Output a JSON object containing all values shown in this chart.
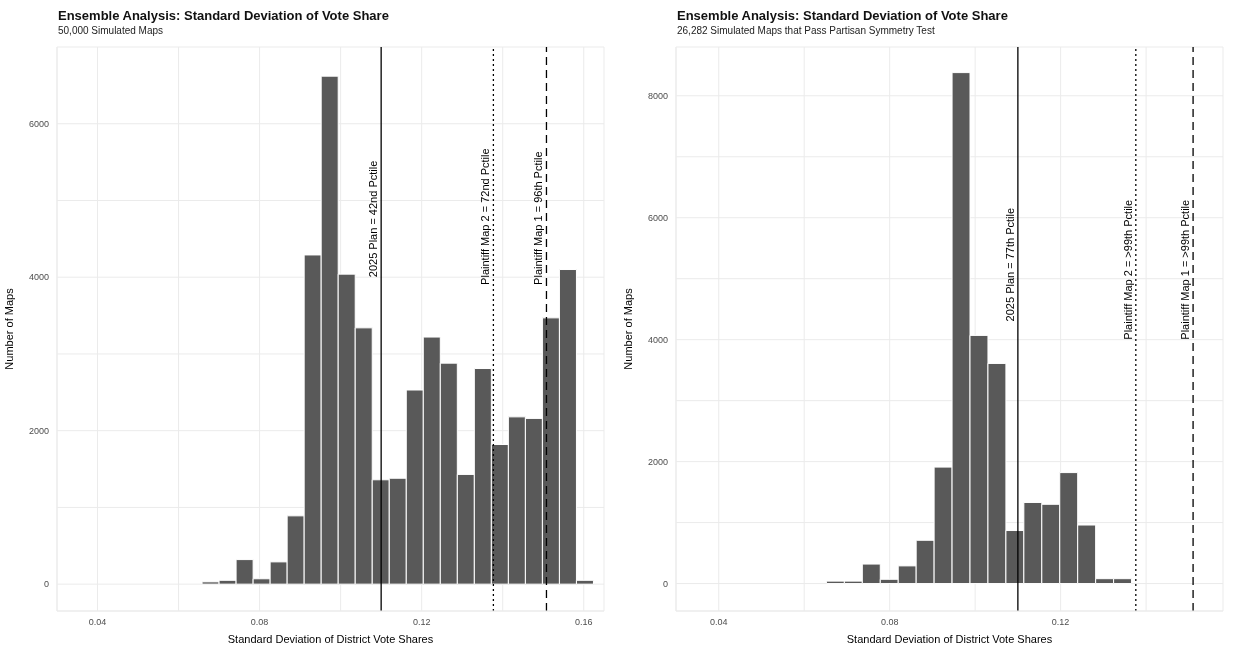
{
  "chart_data": [
    {
      "type": "histogram",
      "title": "Ensemble Analysis: Standard Deviation of Vote Share",
      "subtitle": "50,000 Simulated Maps",
      "xlabel": "Standard Deviation of District Vote Shares",
      "ylabel": "Number of Maps",
      "color": "#595959",
      "bins": [
        0.0658,
        0.07,
        0.0742,
        0.0784,
        0.0826,
        0.0868,
        0.091,
        0.0952,
        0.0994,
        0.1036,
        0.1078,
        0.112,
        0.1162,
        0.1204,
        0.1246,
        0.1288,
        0.133,
        0.1372,
        0.1414,
        0.1456,
        0.1498,
        0.154,
        0.1582,
        0.1624
      ],
      "values": [
        30,
        50,
        320,
        70,
        290,
        890,
        4290,
        6620,
        4040,
        3340,
        1360,
        1380,
        2530,
        3220,
        2880,
        1430,
        2810,
        1820,
        2180,
        2160,
        3470,
        4100,
        50
      ],
      "xlim": [
        0.03,
        0.165
      ],
      "xticks": [
        0.04,
        {
          "value": 0.06,
          "label": null
        },
        0.08,
        {
          "value": 0.1,
          "label": null
        },
        0.12,
        {
          "value": 0.14,
          "label": null
        },
        0.16
      ],
      "ylim": [
        -350,
        7000
      ],
      "yticks": [
        0,
        {
          "value": 1000,
          "label": null
        },
        2000,
        {
          "value": 3000,
          "label": null
        },
        4000,
        {
          "value": 5000,
          "label": null
        },
        6000,
        {
          "value": 7000,
          "label": null
        }
      ],
      "grid": true,
      "ref_lines": [
        {
          "axis": "x",
          "value": 0.11,
          "color": "#000000",
          "line_style": "solid"
        },
        {
          "axis": "x",
          "value": 0.1377,
          "color": "#000000",
          "line_style": "dotted"
        },
        {
          "axis": "x",
          "value": 0.1508,
          "color": "#000000",
          "line_style": "dashed"
        }
      ],
      "annotations": [
        {
          "text": "2025 Plan = 42nd Pctile",
          "x": 0.11,
          "y": 4000
        },
        {
          "text": "Plaintiff Map 2 = 72nd Pctile",
          "x": 0.1377,
          "y": 3900
        },
        {
          "text": "Plaintiff Map 1 = 96th Pctile",
          "x": 0.1508,
          "y": 3900
        }
      ]
    },
    {
      "type": "histogram",
      "title": "Ensemble Analysis: Standard Deviation of Vote Share",
      "subtitle": "26,282 Simulated Maps that Pass Partisan Symmetry Test",
      "xlabel": "Standard Deviation of District Vote Shares",
      "ylabel": "Number of Maps",
      "color": "#595959",
      "bins": [
        0.0652,
        0.0694,
        0.0736,
        0.0778,
        0.082,
        0.0862,
        0.0904,
        0.0946,
        0.0988,
        0.103,
        0.1072,
        0.1114,
        0.1156,
        0.1198,
        0.124,
        0.1282,
        0.1324,
        0.1366
      ],
      "values": [
        40,
        40,
        320,
        70,
        290,
        710,
        1910,
        8380,
        4070,
        3610,
        870,
        1330,
        1300,
        1820,
        960,
        80,
        80
      ],
      "xlim": [
        0.03,
        0.158
      ],
      "xticks": [
        0.04,
        {
          "value": 0.06,
          "label": null
        },
        0.08,
        {
          "value": 0.1,
          "label": null
        },
        0.12,
        {
          "value": 0.14,
          "label": null
        }
      ],
      "ylim": [
        -450,
        8800
      ],
      "yticks": [
        0,
        {
          "value": 1000,
          "label": null
        },
        2000,
        {
          "value": 3000,
          "label": null
        },
        4000,
        {
          "value": 5000,
          "label": null
        },
        6000,
        {
          "value": 7000,
          "label": null
        },
        8000
      ],
      "grid": true,
      "ref_lines": [
        {
          "axis": "x",
          "value": 0.11,
          "color": "#000000",
          "line_style": "solid"
        },
        {
          "axis": "x",
          "value": 0.1376,
          "color": "#000000",
          "line_style": "dotted"
        },
        {
          "axis": "x",
          "value": 0.151,
          "color": "#000000",
          "line_style": "dashed"
        }
      ],
      "annotations": [
        {
          "text": "2025 Plan = 77th Pctile",
          "x": 0.11,
          "y": 4300
        },
        {
          "text": "Plaintiff Map 2 = >99th Pctile",
          "x": 0.1376,
          "y": 4000
        },
        {
          "text": "Plaintiff Map 1 = >99th Pctile",
          "x": 0.151,
          "y": 4000
        }
      ]
    }
  ]
}
